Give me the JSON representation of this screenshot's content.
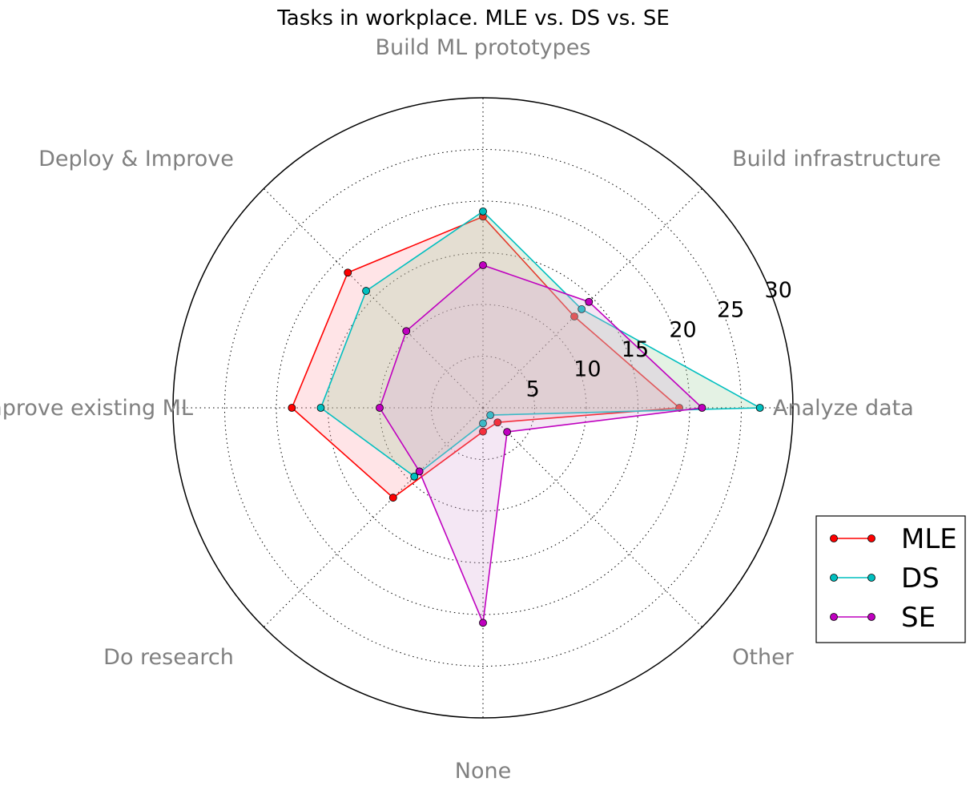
{
  "chart_data": {
    "type": "radar",
    "title": "Tasks in workplace. MLE vs. DS vs. SE",
    "categories": [
      "Analyze data",
      "Build infrastructure",
      "Build ML prototypes",
      "Deploy & Improve",
      "Improve existing ML",
      "Do research",
      "None",
      "Other"
    ],
    "rlim": [
      0,
      30
    ],
    "rticks": [
      5,
      10,
      15,
      20,
      25,
      30
    ],
    "grid": true,
    "legend_position": "lower-right",
    "series": [
      {
        "name": "MLE",
        "color": "#ff0000",
        "fill": "#ff9fa8",
        "values": [
          19,
          12.5,
          18.5,
          18.5,
          18.5,
          12.3,
          2.3,
          2
        ]
      },
      {
        "name": "DS",
        "color": "#00bfbf",
        "fill": "#9fd19f",
        "values": [
          26.8,
          13.5,
          19,
          16,
          15.7,
          9.4,
          1.5,
          1
        ]
      },
      {
        "name": "SE",
        "color": "#bf00bf",
        "fill": "#d9a8d9",
        "values": [
          21.2,
          14.5,
          13.8,
          10.5,
          10,
          8.7,
          20.8,
          3.3
        ]
      }
    ]
  }
}
